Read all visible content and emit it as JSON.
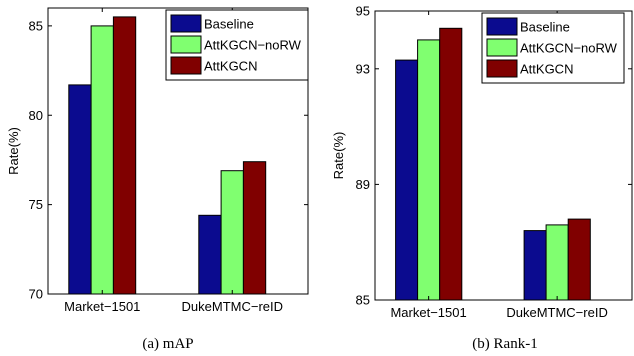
{
  "chart_data": [
    {
      "type": "bar",
      "caption": "(a)  mAP",
      "ylabel": "Rate(%)",
      "categories": [
        "Market−1501",
        "DukeMTMC−reID"
      ],
      "ylim": [
        70,
        86
      ],
      "yticks": [
        70,
        75,
        80,
        85
      ],
      "legend_position": "top-right",
      "series": [
        {
          "name": "Baseline",
          "color": "#0b0b8f",
          "values": [
            81.7,
            74.4
          ]
        },
        {
          "name": "AttKGCN−noRW",
          "color": "#80ff70",
          "values": [
            85.0,
            76.9
          ]
        },
        {
          "name": "AttKGCN",
          "color": "#800000",
          "values": [
            85.5,
            77.4
          ]
        }
      ]
    },
    {
      "type": "bar",
      "caption": "(b)  Rank-1",
      "ylabel": "Rate(%)",
      "categories": [
        "Market−1501",
        "DukeMTMC−reID"
      ],
      "ylim": [
        85,
        95
      ],
      "yticks": [
        85,
        89,
        93,
        95
      ],
      "legend_position": "top-right",
      "series": [
        {
          "name": "Baseline",
          "color": "#0b0b8f",
          "values": [
            93.3,
            87.4
          ]
        },
        {
          "name": "AttKGCN−noRW",
          "color": "#80ff70",
          "values": [
            94.0,
            87.6
          ]
        },
        {
          "name": "AttKGCN",
          "color": "#800000",
          "values": [
            94.4,
            87.8
          ]
        }
      ]
    }
  ]
}
